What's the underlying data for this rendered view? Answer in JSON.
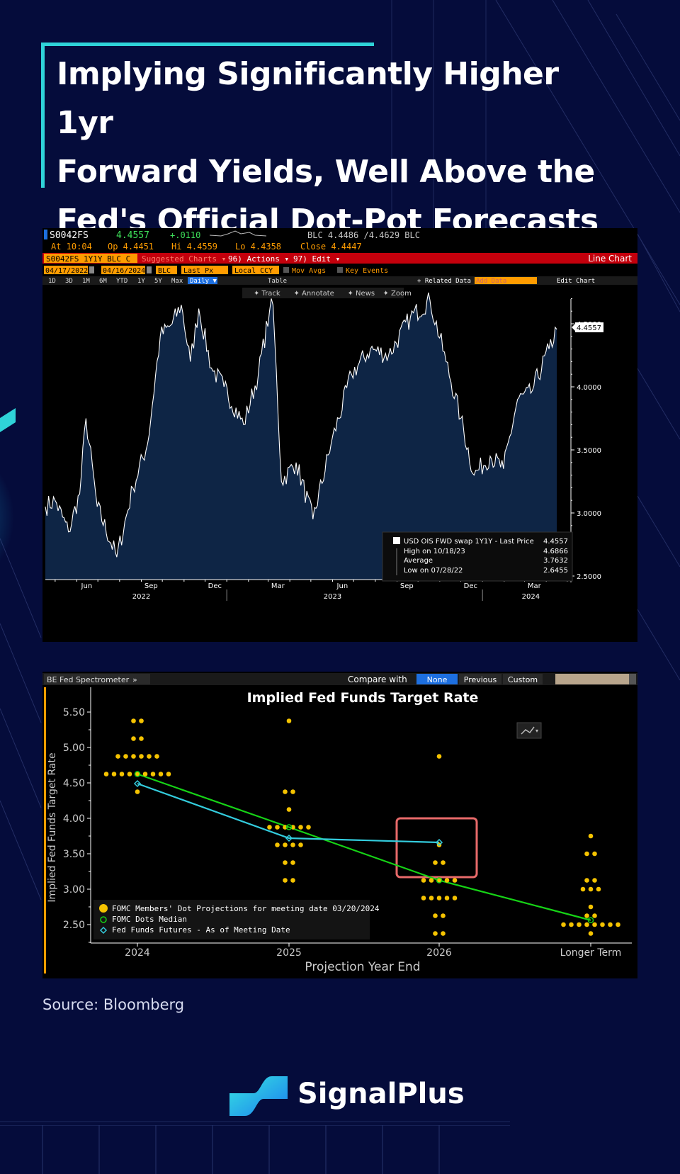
{
  "title_lines": [
    "Implying Significantly Higher 1yr",
    "Forward Yields, Well Above the",
    "Fed's Official Dot-Pot Forecasts"
  ],
  "source": "Source: Bloomberg",
  "brand": "SignalPlus",
  "colors": {
    "accent": "#2fd3d8",
    "background": "#050c3b",
    "terminal_bg": "#000000",
    "ticker_bar": "#d40000",
    "orange": "#ff9c00",
    "dot": "#f5c300",
    "median": "#16d316",
    "futures": "#33ccdd",
    "highlight_box": "#e86a6a"
  },
  "terminal": {
    "ticker": "S0042FS",
    "price": "4.4557",
    "change": "+.0110",
    "blc": "BLC 4.4486 /4.4629 BLC",
    "at": "At 10:04",
    "op": "Op 4.4451",
    "hi": "Hi 4.4559",
    "lo": "Lo 4.4358",
    "close": "Close 4.4447",
    "security": "S0042FS 1Y1Y BLC C",
    "suggested": "Suggested Charts ▾",
    "actions": "96) Actions ▾",
    "edit": "97) Edit ▾",
    "chart_label": "Line Chart",
    "date_from": "04/17/2022",
    "date_to": "04/16/2024",
    "src": "BLC",
    "field": "Last Px",
    "ccy": "Local CCY",
    "mov_avgs": "Mov Avgs",
    "key_events": "Key Events",
    "periods": [
      "1D",
      "3D",
      "1M",
      "6M",
      "YTD",
      "1Y",
      "5Y",
      "Max"
    ],
    "frequency": "Daily ▼",
    "table": "Table",
    "related": "+ Related Data ▾",
    "add_data": "Add Data",
    "edit_chart": "Edit Chart",
    "tools": [
      "Track",
      "Annotate",
      "News",
      "Zoom"
    ],
    "last_label": "4.4557"
  },
  "legend1": {
    "series": "USD OIS FWD swap 1Y1Y - Last Price",
    "series_val": "4.4557",
    "high": "High on 10/18/23",
    "high_val": "4.6866",
    "avg": "Average",
    "avg_val": "3.7632",
    "low": "Low on 07/28/22",
    "low_val": "2.6455"
  },
  "spectrometer": {
    "tab": "BE Fed Spectrometer",
    "compare": "Compare with",
    "options": [
      "None",
      "Previous",
      "Custom"
    ],
    "title": "Implied Fed Funds Target Rate",
    "ylabel": "Implied Fed Funds Target Rate",
    "xlabel": "Projection Year End",
    "legend": [
      "FOMC Members' Dot Projections for meeting date 03/20/2024",
      "FOMC Dots Median",
      "Fed Funds Futures - As of Meeting Date"
    ]
  },
  "chart_data": [
    {
      "type": "line",
      "series_name": "USD OIS FWD swap 1Y1Y - Last Price",
      "y_ticks": [
        "2.5000",
        "3.0000",
        "3.5000",
        "4.0000",
        "4.5000"
      ],
      "ylim": [
        2.5,
        4.8
      ],
      "x_ticks": [
        "Jun",
        "Sep",
        "Dec",
        "Mar",
        "Jun",
        "Sep",
        "Dec",
        "Mar"
      ],
      "x_years": [
        "2022",
        "2023",
        "2024"
      ],
      "x_range": [
        "2022-04-17",
        "2024-04-16"
      ],
      "key_points": [
        {
          "date": "2022-04-17",
          "value": 3.05
        },
        {
          "date": "2022-05-01",
          "value": 3.1
        },
        {
          "date": "2022-05-20",
          "value": 2.85
        },
        {
          "date": "2022-06-05",
          "value": 3.15
        },
        {
          "date": "2022-06-14",
          "value": 3.75
        },
        {
          "date": "2022-06-30",
          "value": 3.05
        },
        {
          "date": "2022-07-28",
          "value": 2.65
        },
        {
          "date": "2022-08-20",
          "value": 3.2
        },
        {
          "date": "2022-09-10",
          "value": 3.55
        },
        {
          "date": "2022-09-28",
          "value": 4.4
        },
        {
          "date": "2022-10-15",
          "value": 4.5
        },
        {
          "date": "2022-10-28",
          "value": 4.65
        },
        {
          "date": "2022-11-10",
          "value": 4.2
        },
        {
          "date": "2022-11-22",
          "value": 4.62
        },
        {
          "date": "2022-12-10",
          "value": 4.15
        },
        {
          "date": "2022-12-28",
          "value": 4.0
        },
        {
          "date": "2023-01-25",
          "value": 3.7
        },
        {
          "date": "2023-02-15",
          "value": 4.1
        },
        {
          "date": "2023-03-03",
          "value": 4.6
        },
        {
          "date": "2023-03-08",
          "value": 4.65
        },
        {
          "date": "2023-03-20",
          "value": 3.25
        },
        {
          "date": "2023-04-10",
          "value": 3.4
        },
        {
          "date": "2023-05-04",
          "value": 2.95
        },
        {
          "date": "2023-05-30",
          "value": 3.55
        },
        {
          "date": "2023-06-28",
          "value": 4.1
        },
        {
          "date": "2023-07-25",
          "value": 4.3
        },
        {
          "date": "2023-08-20",
          "value": 4.25
        },
        {
          "date": "2023-09-20",
          "value": 4.55
        },
        {
          "date": "2023-10-18",
          "value": 4.6866
        },
        {
          "date": "2023-11-10",
          "value": 4.2
        },
        {
          "date": "2023-12-01",
          "value": 3.75
        },
        {
          "date": "2023-12-20",
          "value": 3.3
        },
        {
          "date": "2024-01-12",
          "value": 3.45
        },
        {
          "date": "2024-01-31",
          "value": 3.35
        },
        {
          "date": "2024-02-20",
          "value": 3.9
        },
        {
          "date": "2024-03-10",
          "value": 3.95
        },
        {
          "date": "2024-04-05",
          "value": 4.3
        },
        {
          "date": "2024-04-16",
          "value": 4.4557
        }
      ]
    },
    {
      "type": "scatter",
      "categories": [
        "2024",
        "2025",
        "2026",
        "Longer Term"
      ],
      "y_ticks": [
        "2.50",
        "3.00",
        "3.50",
        "4.00",
        "4.50",
        "5.00",
        "5.50"
      ],
      "ylim": [
        2.25,
        5.6
      ],
      "dot_projections": {
        "2024": [
          [
            5.375,
            2
          ],
          [
            5.125,
            2
          ],
          [
            4.875,
            6
          ],
          [
            4.625,
            9
          ],
          [
            4.375,
            1
          ]
        ],
        "2025": [
          [
            5.375,
            1
          ],
          [
            4.375,
            2
          ],
          [
            4.125,
            1
          ],
          [
            3.875,
            6
          ],
          [
            3.625,
            4
          ],
          [
            3.375,
            2
          ],
          [
            3.125,
            2
          ],
          [
            2.625,
            1
          ]
        ],
        "2026": [
          [
            4.875,
            1
          ],
          [
            3.625,
            1
          ],
          [
            3.375,
            2
          ],
          [
            3.125,
            5
          ],
          [
            2.875,
            5
          ],
          [
            2.625,
            2
          ],
          [
            2.375,
            2
          ]
        ],
        "Longer Term": [
          [
            3.75,
            1
          ],
          [
            3.5,
            2
          ],
          [
            3.125,
            2
          ],
          [
            3.0,
            3
          ],
          [
            2.75,
            1
          ],
          [
            2.625,
            2
          ],
          [
            2.5,
            8
          ],
          [
            2.375,
            1
          ]
        ]
      },
      "median": [
        4.625,
        3.875,
        3.125,
        2.5625
      ],
      "futures": [
        4.49,
        3.72,
        3.66
      ]
    }
  ]
}
